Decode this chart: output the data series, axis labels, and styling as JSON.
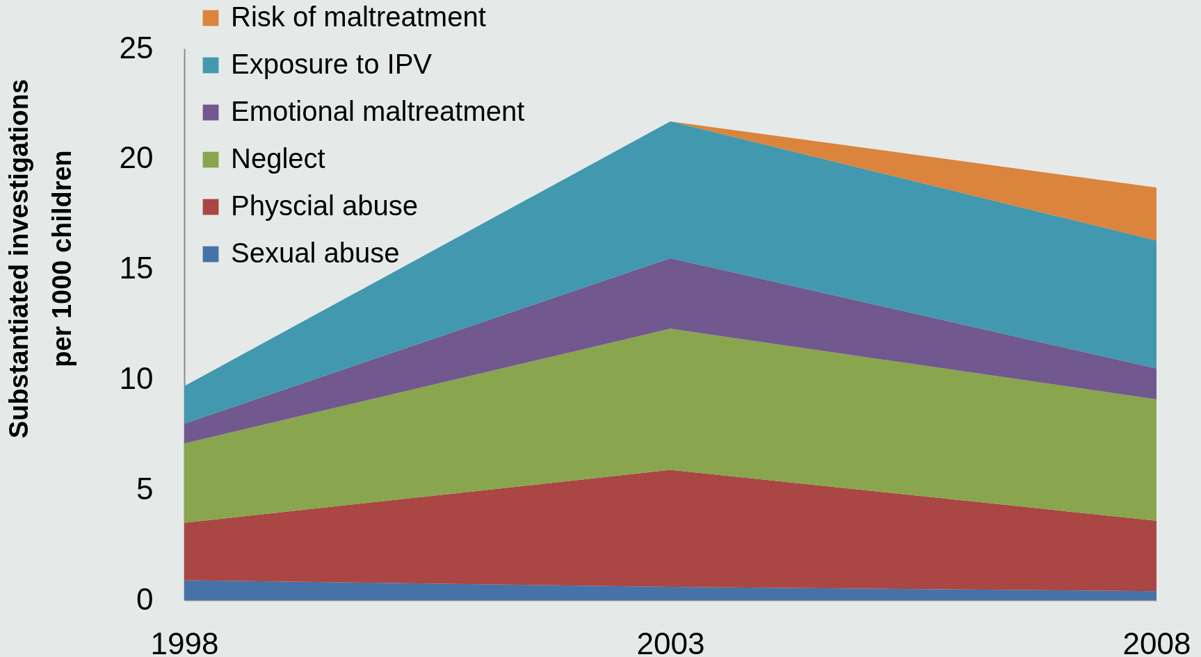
{
  "chart_data": {
    "type": "area",
    "stacked": true,
    "ylabel": "Substantiated investigations per 1000 children",
    "categories": [
      "1998",
      "2003",
      "2008"
    ],
    "series": [
      {
        "name": "Sexual abuse",
        "color": "#4572a7",
        "values": [
          0.9,
          0.6,
          0.4
        ]
      },
      {
        "name": "Physcial abuse",
        "color": "#aa4643",
        "values": [
          2.6,
          5.3,
          3.2
        ]
      },
      {
        "name": "Neglect",
        "color": "#89a54e",
        "values": [
          3.6,
          6.4,
          5.5
        ]
      },
      {
        "name": "Emotional maltreatment",
        "color": "#71588f",
        "values": [
          0.9,
          3.2,
          1.4
        ]
      },
      {
        "name": "Exposure to IPV",
        "color": "#4198af",
        "values": [
          1.7,
          6.2,
          5.8
        ]
      },
      {
        "name": "Risk of maltreatment",
        "color": "#db843d",
        "values": [
          0,
          0,
          2.4
        ]
      }
    ],
    "ylim": [
      0,
      25
    ],
    "yticks": [
      0,
      5,
      10,
      15,
      20,
      25
    ],
    "legend": "top left"
  }
}
